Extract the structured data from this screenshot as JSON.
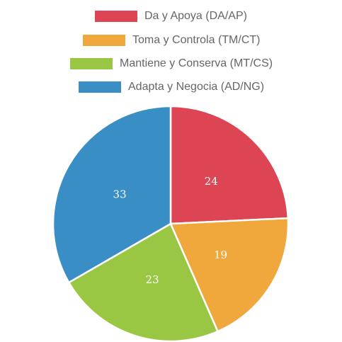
{
  "chart_data": {
    "type": "pie",
    "title": "",
    "legend_position": "top",
    "start_angle": "top, clockwise",
    "slices": [
      {
        "label": "Da y Apoya (DA/AP)",
        "value": 24,
        "color": "#dd4454"
      },
      {
        "label": "Toma y Controla (TM/CT)",
        "value": 19,
        "color": "#f0a83c"
      },
      {
        "label": "Mantiene y Conserva (MT/CS)",
        "value": 23,
        "color": "#99c643"
      },
      {
        "label": "Adapta y Negocia (AD/NG)",
        "value": 33,
        "color": "#3a8ec6"
      }
    ],
    "slice_border_color": "#ffffff"
  }
}
